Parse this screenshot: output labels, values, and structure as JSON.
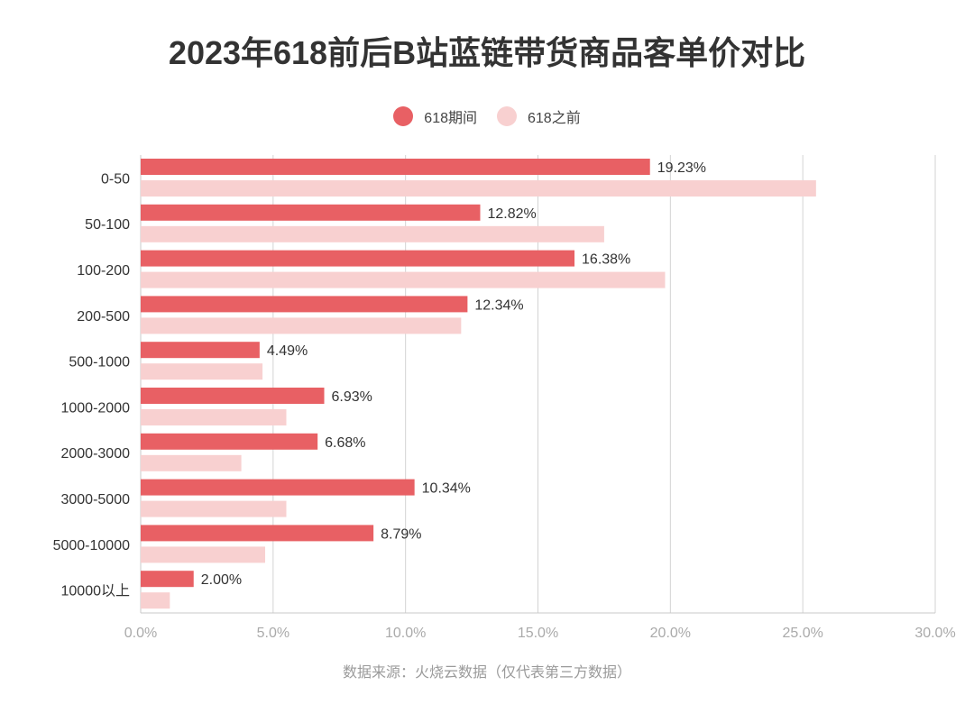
{
  "chart_data": {
    "type": "bar",
    "orientation": "horizontal",
    "title": "2023年618前后B站蓝链带货商品客单价对比",
    "categories": [
      "0-50",
      "50-100",
      "100-200",
      "200-500",
      "500-1000",
      "1000-2000",
      "2000-3000",
      "3000-5000",
      "5000-10000",
      "10000以上"
    ],
    "series": [
      {
        "name": "618期间",
        "color": "#e86064",
        "values": [
          19.23,
          12.82,
          16.38,
          12.34,
          4.49,
          6.93,
          6.68,
          10.34,
          8.79,
          2.0
        ],
        "labels": [
          "19.23%",
          "12.82%",
          "16.38%",
          "12.34%",
          "4.49%",
          "6.93%",
          "6.68%",
          "10.34%",
          "8.79%",
          "2.00%"
        ]
      },
      {
        "name": "618之前",
        "color": "#f8d0d0",
        "values": [
          25.5,
          17.5,
          19.8,
          12.1,
          4.6,
          5.5,
          3.8,
          5.5,
          4.7,
          1.1
        ]
      }
    ],
    "xlim": [
      0,
      30
    ],
    "xticks": [
      "0.0%",
      "5.0%",
      "10.0%",
      "15.0%",
      "20.0%",
      "25.0%",
      "30.0%"
    ],
    "grid": true,
    "legend_position": "top-center"
  },
  "source": "数据来源：火烧云数据（仅代表第三方数据）"
}
